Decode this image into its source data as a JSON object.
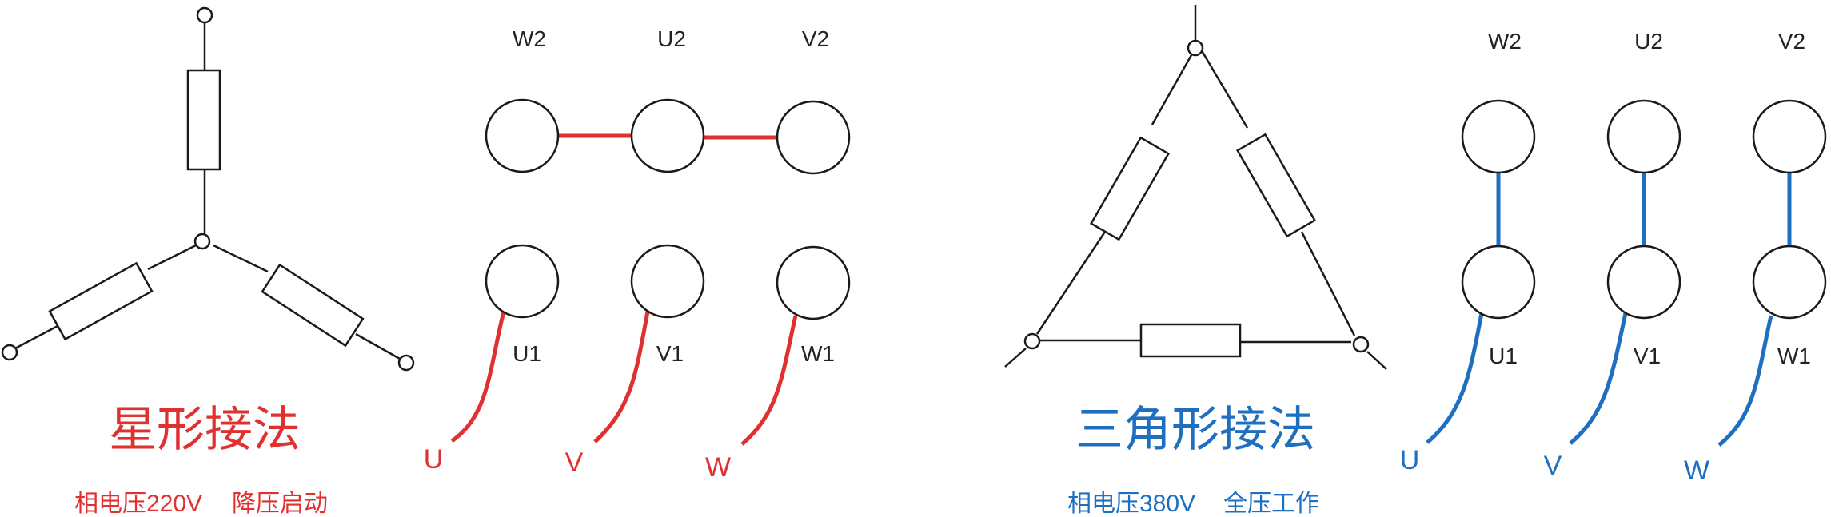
{
  "colors": {
    "line": "#1a1a1a",
    "star": "#e03131",
    "delta": "#1f6fc0"
  },
  "star": {
    "title": "星形接法",
    "caption_voltage": "相电压220V",
    "caption_mode": "降压启动",
    "top_labels": [
      "W2",
      "U2",
      "V2"
    ],
    "bottom_labels": [
      "U1",
      "V1",
      "W1"
    ],
    "phase_labels": [
      "U",
      "V",
      "W"
    ]
  },
  "delta": {
    "title": "三角形接法",
    "caption_voltage": "相电压380V",
    "caption_mode": "全压工作",
    "top_labels": [
      "W2",
      "U2",
      "V2"
    ],
    "bottom_labels": [
      "U1",
      "V1",
      "W1"
    ],
    "phase_labels": [
      "U",
      "V",
      "W"
    ]
  }
}
